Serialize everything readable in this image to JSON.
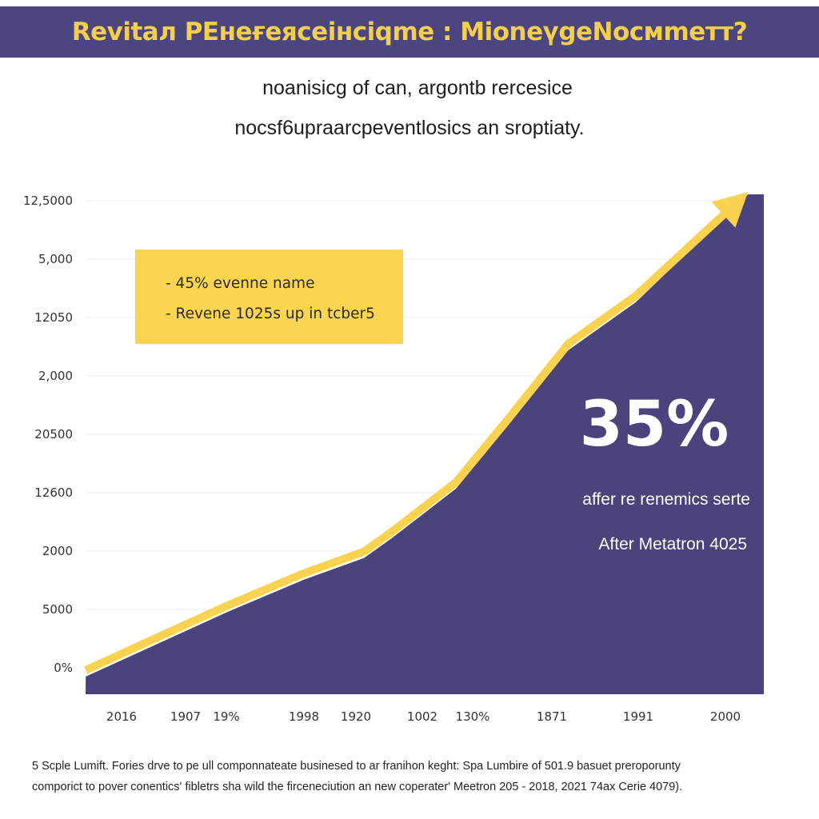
{
  "header": {
    "title": "Revitaл PEнeғeяceiнciqme : MioneүgeNocмmeтт?",
    "subtitle_lines": [
      "noanisicg of can, argontb rercesice",
      "nocsf6upraarcpeventlosics an sroptiaty."
    ]
  },
  "chart_data": {
    "type": "area",
    "title": "",
    "xlabel": "",
    "ylabel": "",
    "x_tick_labels": [
      "2016",
      "1907",
      "19%",
      "1998",
      "1920",
      "1002",
      "130%",
      "1871",
      "1991",
      "2000"
    ],
    "y_tick_labels": [
      "0%",
      "5000",
      "2000",
      "12600",
      "20500",
      "2,000",
      "12050",
      "5,000",
      "12,5000"
    ],
    "y_axis_note": "tick labels are evenly spaced; series values given in tick-step units (0 = '0%', 8 = '12,5000')",
    "series": [
      {
        "x": [
          -0.56,
          0.48,
          2.02,
          3.0,
          4.12,
          4.54,
          5.67,
          6.44,
          7.19,
          7.97,
          9.26
        ],
        "values": [
          -0.04,
          0.48,
          1.07,
          1.62,
          1.99,
          2.33,
          3.18,
          4.25,
          5.55,
          6.37,
          8.15
        ]
      }
    ],
    "grid": true,
    "trend_arrow": true,
    "colors": {
      "area": "#4a437c",
      "line": "#f9d34f",
      "grid": "#eeeeee"
    }
  },
  "callout": {
    "lines": [
      "- 45% evenne name",
      "- Revene 1025s up in tcber5"
    ],
    "color": "#fbd550"
  },
  "highlight": {
    "big_value": "35%",
    "caption": "affer re renemics serte",
    "caption2": "After Metatron 4025"
  },
  "footnote": {
    "lines": [
      "5 Scple Lumift. Fories drve to pe ull componnateate businesed to ar franihon keght: Spa Lumbire of 501.9 basuet preroporunty",
      "comporict to pover conentics' fibletrs sha wild the firceneciution an new coperater' Meetron 205 - 2018, 2021 74ax Cerie 4079)."
    ]
  },
  "colors": {
    "title_bar": "#4b4680",
    "title_text": "#f5cf4a",
    "accent": "#f9d34f",
    "area": "#4a437c"
  }
}
